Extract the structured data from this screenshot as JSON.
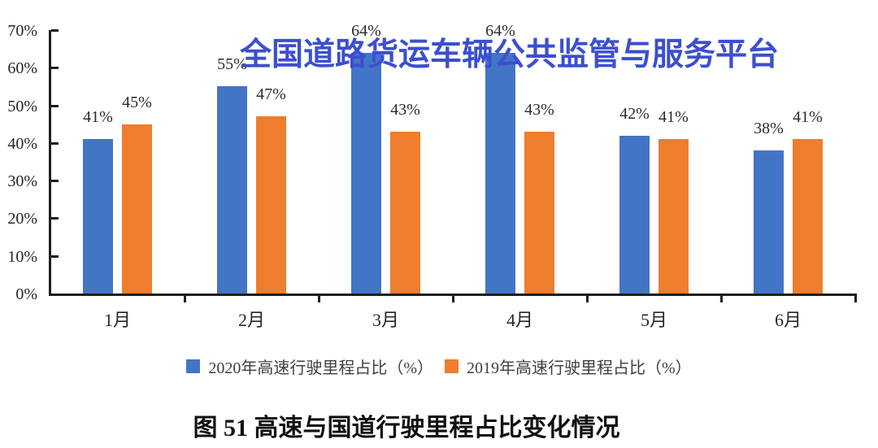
{
  "watermark": {
    "text": "全国道路货运车辆公共监管与服务平台",
    "color": "#3c4fd0"
  },
  "caption": {
    "text": "图 51 高速与国道行驶里程占比变化情况"
  },
  "colors": {
    "series_2020_blue": "#4275c6",
    "series_2019_orange": "#ee7d2e",
    "axis": "#1f1f1f",
    "label_text": "#2b2b2b",
    "watermark_blue": "#3c4fd0"
  },
  "chart_data": {
    "type": "bar",
    "title": "",
    "xlabel": "",
    "ylabel": "",
    "categories": [
      "1月",
      "2月",
      "3月",
      "4月",
      "5月",
      "6月"
    ],
    "series": [
      {
        "name": "2020年高速行驶里程占比（%）",
        "color": "#4275c6",
        "values": [
          41,
          55,
          64,
          64,
          42,
          38
        ]
      },
      {
        "name": "2019年高速行驶里程占比（%）",
        "color": "#ee7d2e",
        "values": [
          45,
          47,
          43,
          43,
          41,
          41
        ]
      }
    ],
    "ylim": [
      0,
      70
    ],
    "yticks": [
      "0%",
      "10%",
      "20%",
      "30%",
      "40%",
      "50%",
      "60%",
      "70%"
    ],
    "data_label_suffix": "%",
    "data_labels": true,
    "grid": false,
    "legend_position": "bottom"
  }
}
